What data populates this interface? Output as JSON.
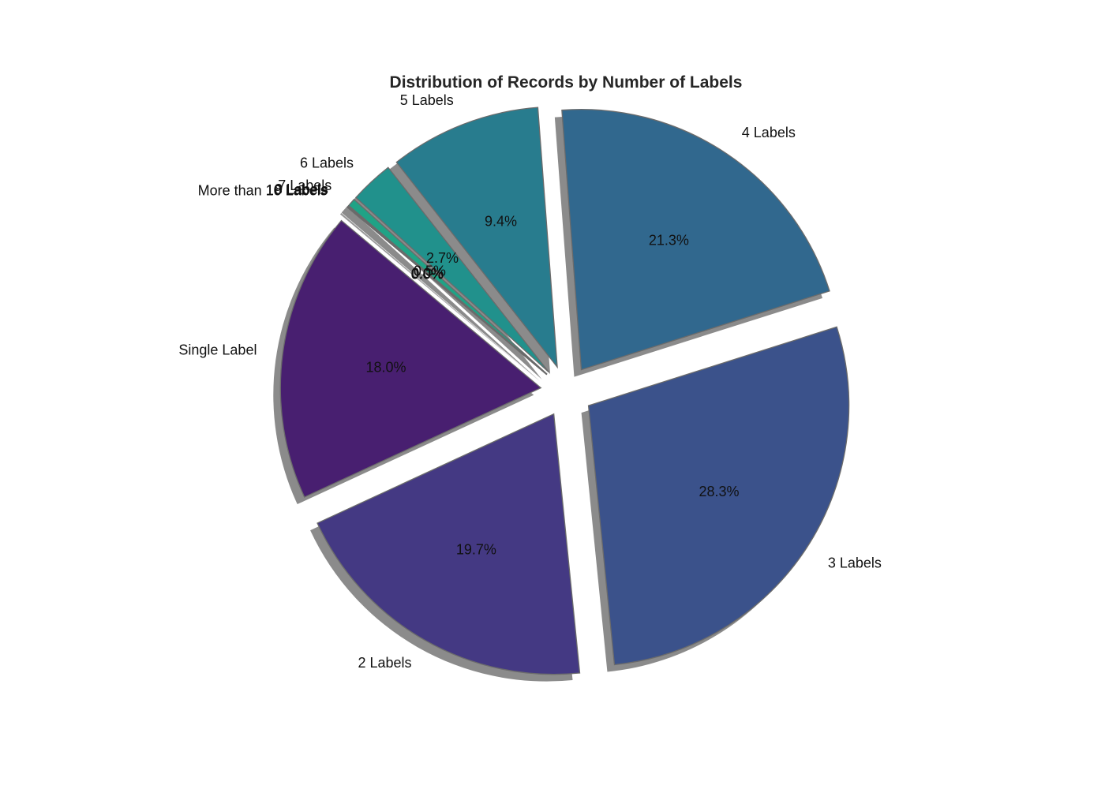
{
  "chart_data": {
    "type": "pie",
    "title": "Distribution of Records by Number of Labels",
    "categories": [
      "Single Label",
      "2 Labels",
      "3 Labels",
      "4 Labels",
      "5 Labels",
      "6 Labels",
      "7 Labels",
      "8 Labels",
      "9 Labels",
      "10 Labels",
      "More than 10 Labels"
    ],
    "percent_labels": [
      "18.0%",
      "19.7%",
      "28.3%",
      "21.3%",
      "9.4%",
      "2.7%",
      "0.5%",
      "0.0%",
      "0.0%",
      "0.0%",
      "0.0%"
    ],
    "values": [
      18.0,
      19.7,
      28.3,
      21.3,
      9.4,
      2.7,
      0.5,
      0.04,
      0.03,
      0.02,
      0.01
    ],
    "colors": [
      "#481f70",
      "#443983",
      "#3b528b",
      "#31688e",
      "#287c8e",
      "#21918c",
      "#20a386",
      "#35b779",
      "#5ec962",
      "#90d743",
      "#c8e020"
    ],
    "start_angle_deg": 140,
    "counterclockwise": true,
    "exploded": true,
    "shadow": true,
    "legend": "none"
  }
}
